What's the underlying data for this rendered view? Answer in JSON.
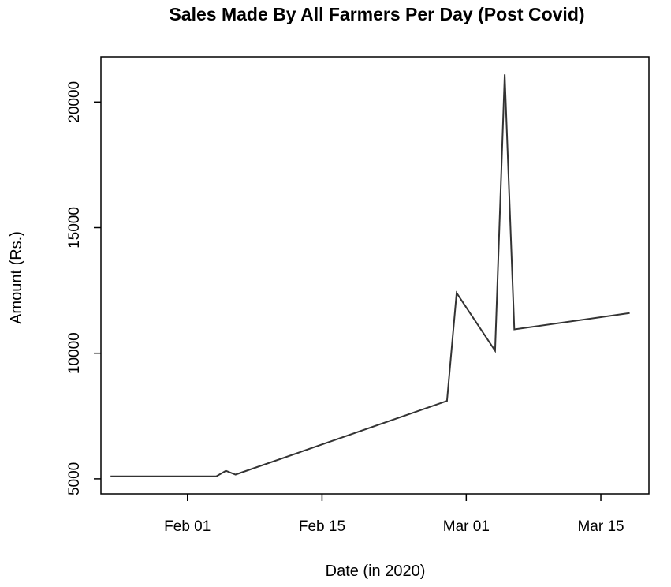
{
  "chart_data": {
    "type": "line",
    "title": "Sales Made By All Farmers Per Day (Post Covid)",
    "xlabel": "Date (in 2020)",
    "ylabel": "Amount (Rs.)",
    "x_tick_labels": [
      "Feb 01",
      "Feb 15",
      "Mar 01",
      "Mar 15"
    ],
    "x_tick_dates": [
      "2020-02-01",
      "2020-02-15",
      "2020-03-01",
      "2020-03-15"
    ],
    "y_ticks": [
      5000,
      10000,
      15000,
      20000
    ],
    "xlim": [
      "2020-01-23",
      "2020-03-20"
    ],
    "ylim": [
      4400,
      21800
    ],
    "grid": false,
    "line_color": "#333333",
    "series": [
      {
        "points": [
          {
            "x": "2020-01-24",
            "y": 5100
          },
          {
            "x": "2020-02-04",
            "y": 5100
          },
          {
            "x": "2020-02-05",
            "y": 5320
          },
          {
            "x": "2020-02-06",
            "y": 5170
          },
          {
            "x": "2020-02-28",
            "y": 8100
          },
          {
            "x": "2020-02-29",
            "y": 12400
          },
          {
            "x": "2020-03-04",
            "y": 10100
          },
          {
            "x": "2020-03-05",
            "y": 21100
          },
          {
            "x": "2020-03-06",
            "y": 10950
          },
          {
            "x": "2020-03-18",
            "y": 11600
          }
        ]
      }
    ]
  }
}
